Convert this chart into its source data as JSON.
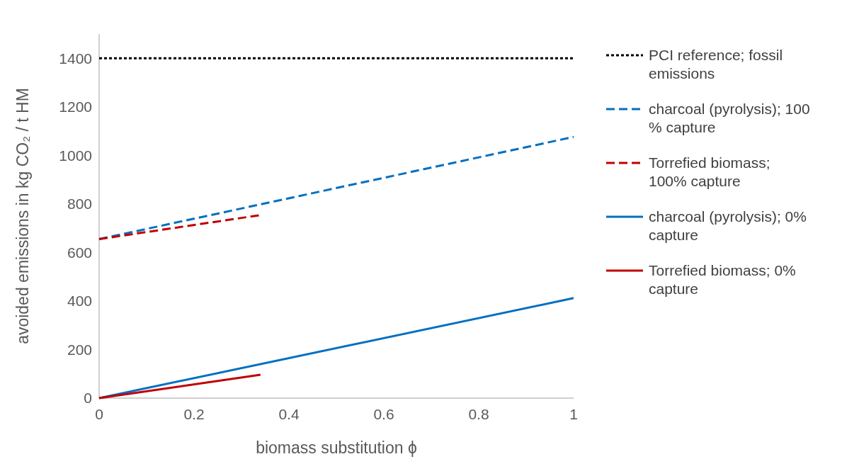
{
  "chart_data": {
    "type": "line",
    "xlabel": "biomass substitution ϕ",
    "ylabel": "avoided emissions  in kg CO₂ / t HM",
    "xlim": [
      0,
      1
    ],
    "xticks": [
      0,
      0.2,
      0.4,
      0.6,
      0.8,
      1
    ],
    "ylim": [
      0,
      1500
    ],
    "yticks": [
      0,
      200,
      400,
      600,
      800,
      1000,
      1200,
      1400
    ],
    "grid": false,
    "legend": "right",
    "marker": "none",
    "series": [
      {
        "name": "PCI reference; fossil emissions",
        "color": "#000000",
        "line_style": "dotted",
        "x": [
          0,
          1
        ],
        "values": [
          1400,
          1400
        ]
      },
      {
        "name": "charcoal (pyrolysis); 100 % capture",
        "color": "#0070c0",
        "line_style": "dashed",
        "x": [
          0,
          1
        ],
        "values": [
          655,
          1076
        ]
      },
      {
        "name": "Torrefied biomass; 100% capture",
        "color": "#c00000",
        "line_style": "dashed",
        "x": [
          0,
          0.34
        ],
        "values": [
          655,
          754
        ]
      },
      {
        "name": "charcoal (pyrolysis); 0% capture",
        "color": "#0070c0",
        "line_style": "solid",
        "x": [
          0,
          1
        ],
        "values": [
          0,
          412
        ]
      },
      {
        "name": "Torrefied biomass; 0% capture",
        "color": "#c00000",
        "line_style": "solid",
        "x": [
          0,
          0.34
        ],
        "values": [
          0,
          96
        ]
      }
    ]
  }
}
